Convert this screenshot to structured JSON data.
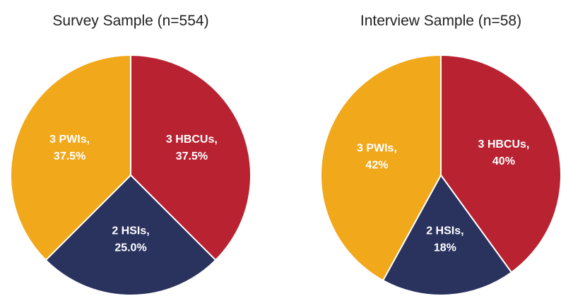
{
  "chart_data": [
    {
      "type": "pie",
      "title": "Survey Sample (n=554)",
      "categories": [
        "3 HBCUs,",
        "2 HSIs,",
        "3 PWIs,"
      ],
      "values": [
        37.5,
        25.0,
        37.5
      ],
      "value_labels": [
        "37.5%",
        "25.0%",
        "37.5%"
      ],
      "colors": [
        "#b92231",
        "#2a325e",
        "#f1a81a"
      ]
    },
    {
      "type": "pie",
      "title": "Interview Sample (n=58)",
      "categories": [
        "3 HBCUs,",
        "2 HSIs,",
        "3 PWIs,"
      ],
      "values": [
        40,
        18,
        42
      ],
      "value_labels": [
        "40%",
        "18%",
        "42%"
      ],
      "colors": [
        "#b92231",
        "#2a325e",
        "#f1a81a"
      ]
    }
  ]
}
